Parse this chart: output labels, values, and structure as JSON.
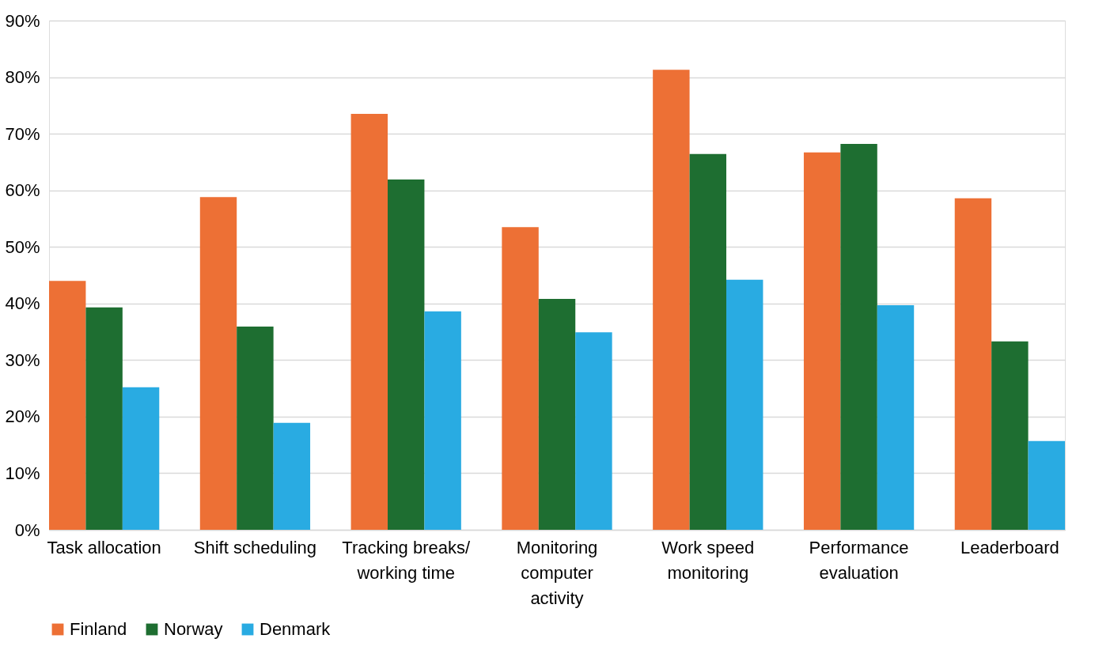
{
  "chart_data": {
    "type": "bar",
    "categories": [
      "Task allocation",
      "Shift scheduling",
      "Tracking breaks/\nworking time",
      "Monitoring\ncomputer\nactivity",
      "Work speed\nmonitoring",
      "Performance\nevaluation",
      "Leaderboard"
    ],
    "series": [
      {
        "name": "Finland",
        "color": "#ed7035",
        "values": [
          44.0,
          58.8,
          73.5,
          53.5,
          81.3,
          66.7,
          58.6
        ]
      },
      {
        "name": "Norway",
        "color": "#1e6e31",
        "values": [
          39.3,
          35.9,
          61.9,
          40.8,
          66.4,
          68.2,
          33.3
        ]
      },
      {
        "name": "Denmark",
        "color": "#29abe2",
        "values": [
          25.2,
          18.9,
          38.6,
          34.9,
          44.2,
          39.7,
          15.7
        ]
      }
    ],
    "ylim": [
      0,
      90
    ],
    "yticks": [
      {
        "value": 0,
        "label": "0%"
      },
      {
        "value": 10,
        "label": "10%"
      },
      {
        "value": 20,
        "label": "20%"
      },
      {
        "value": 30,
        "label": "30%"
      },
      {
        "value": 40,
        "label": "40%"
      },
      {
        "value": 50,
        "label": "50%"
      },
      {
        "value": 60,
        "label": "60%"
      },
      {
        "value": 70,
        "label": "70%"
      },
      {
        "value": 80,
        "label": "80%"
      },
      {
        "value": 90,
        "label": "90%"
      }
    ],
    "grid": "y",
    "legend": "bottom"
  }
}
